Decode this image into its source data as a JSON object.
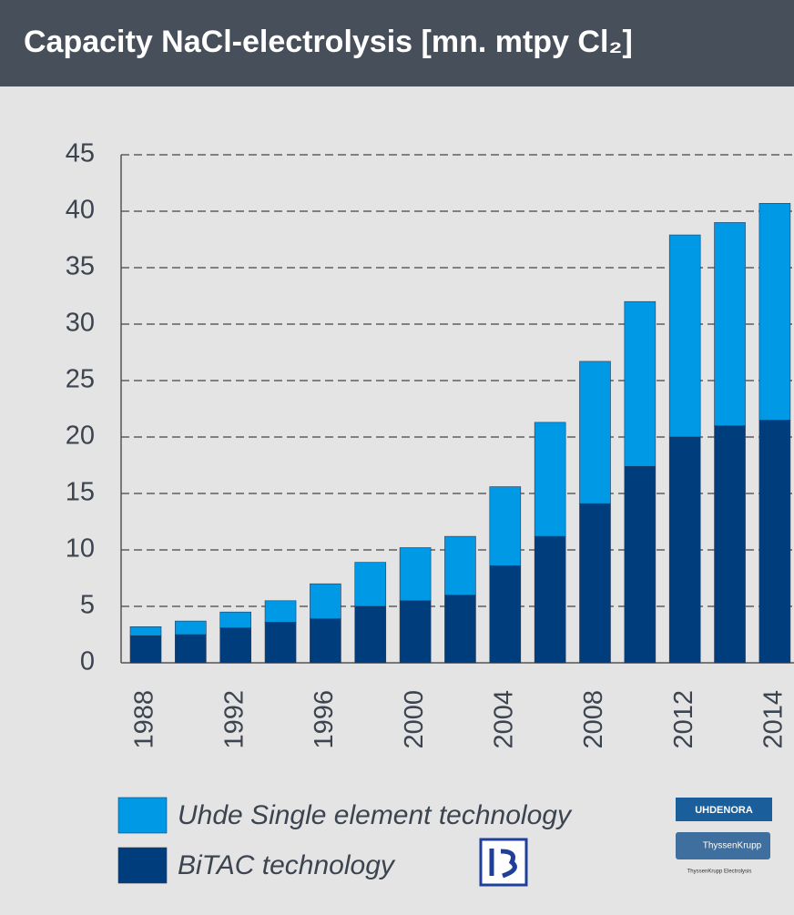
{
  "chart_data": {
    "type": "stacked-bar",
    "title": "Capacity NaCl-electrolysis [mn. mtpy Cl₂]",
    "categories": [
      "1988",
      null,
      "1992",
      null,
      "1996",
      null,
      "2000",
      null,
      "2004",
      null,
      "2008",
      null,
      "2012",
      null,
      "2014"
    ],
    "series": [
      {
        "name": "BiTAC technology",
        "color": "#003d7c",
        "values": [
          2.4,
          2.5,
          3.1,
          3.6,
          3.9,
          5.0,
          5.5,
          6.0,
          8.6,
          11.2,
          14.1,
          17.4,
          20.0,
          21.0,
          21.5
        ]
      },
      {
        "name": "Uhde Single element technology",
        "color": "#0099e6",
        "values": [
          0.8,
          1.2,
          1.4,
          1.9,
          3.1,
          3.9,
          4.7,
          5.2,
          7.0,
          10.1,
          12.6,
          14.6,
          17.9,
          18.0,
          19.2
        ]
      }
    ],
    "ylim": [
      0,
      45
    ],
    "yticks": [
      0,
      5,
      10,
      15,
      20,
      25,
      30,
      35,
      40,
      45
    ],
    "grid": true,
    "logos": [
      "UHDENORA",
      "ThyssenKrupp",
      "ThyssenKrupp Electrolysis"
    ]
  }
}
